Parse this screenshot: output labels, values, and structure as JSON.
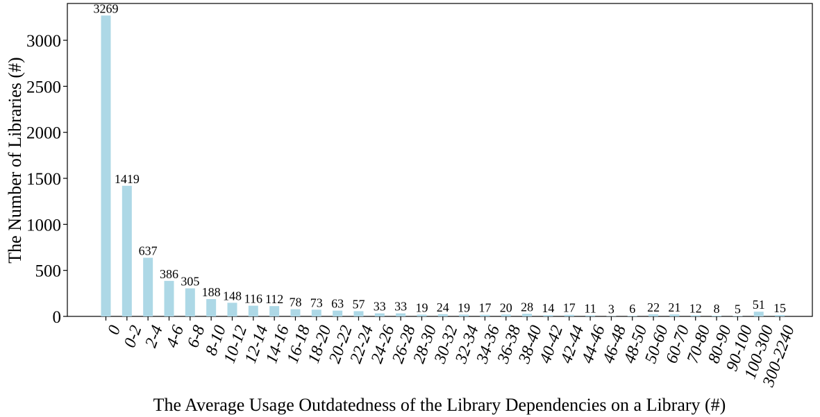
{
  "chart_data": {
    "type": "bar",
    "title": "",
    "xlabel": "The Average Usage Outdatedness of the Library Dependencies on a Library (#)",
    "ylabel": "The Number of Libraries (#)",
    "ylim": [
      0,
      3400
    ],
    "yticks": [
      0,
      500,
      1000,
      1500,
      2000,
      2500,
      3000
    ],
    "grid": false,
    "bar_color": "#add8e6",
    "categories": [
      "0",
      "0-2",
      "2-4",
      "4-6",
      "6-8",
      "8-10",
      "10-12",
      "12-14",
      "14-16",
      "16-18",
      "18-20",
      "20-22",
      "22-24",
      "24-26",
      "26-28",
      "28-30",
      "30-32",
      "32-34",
      "34-36",
      "36-38",
      "38-40",
      "40-42",
      "42-44",
      "44-46",
      "46-48",
      "48-50",
      "50-60",
      "60-70",
      "70-80",
      "80-90",
      "90-100",
      "100-300",
      "300-2240"
    ],
    "values": [
      3269,
      1419,
      637,
      386,
      305,
      188,
      148,
      116,
      112,
      78,
      73,
      63,
      57,
      33,
      33,
      19,
      24,
      19,
      17,
      20,
      28,
      14,
      17,
      11,
      3,
      6,
      22,
      21,
      12,
      8,
      5,
      51,
      15
    ],
    "data_labels": [
      "3269",
      "1419",
      "637",
      "386",
      "305",
      "188",
      "148",
      "116",
      "112",
      "78",
      "73",
      "63",
      "57",
      "33",
      "33",
      "19",
      "24",
      "19",
      "17",
      "20",
      "28",
      "14",
      "17",
      "11",
      "3",
      "6",
      "22",
      "21",
      "12",
      "8",
      "5",
      "51",
      "15"
    ]
  }
}
